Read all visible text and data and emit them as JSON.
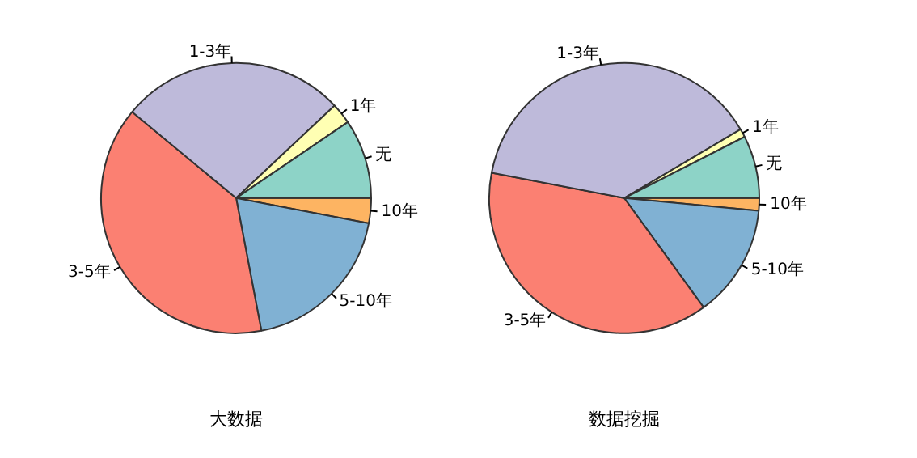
{
  "chart_data": [
    {
      "type": "pie",
      "title": "大数据",
      "categories": [
        "10年",
        "5-10年",
        "3-5年",
        "1-3年",
        "1年",
        "无"
      ],
      "values": [
        3,
        19,
        39,
        27,
        2.5,
        9.5
      ],
      "colors": [
        "#fdb462",
        "#80b1d3",
        "#fb8072",
        "#bebada",
        "#ffffb3",
        "#8dd3c7"
      ],
      "legend": false
    },
    {
      "type": "pie",
      "title": "数据挖掘",
      "categories": [
        "10年",
        "5-10年",
        "3-5年",
        "1-3年",
        "1年",
        "无"
      ],
      "values": [
        1.5,
        13.5,
        38,
        38.5,
        1,
        7.5
      ],
      "colors": [
        "#fdb462",
        "#80b1d3",
        "#fb8072",
        "#bebada",
        "#ffffb3",
        "#8dd3c7"
      ],
      "legend": false
    }
  ]
}
